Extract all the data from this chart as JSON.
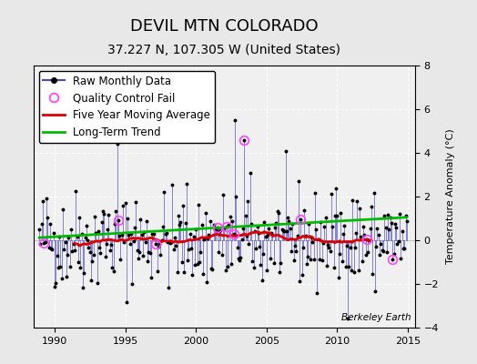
{
  "title": "DEVIL MTN COLORADO",
  "subtitle": "37.227 N, 107.305 W (United States)",
  "ylabel": "Temperature Anomaly (°C)",
  "watermark": "Berkeley Earth",
  "xlim": [
    1988.5,
    2015.5
  ],
  "ylim": [
    -4,
    8
  ],
  "yticks": [
    -4,
    -2,
    0,
    2,
    4,
    6,
    8
  ],
  "xticks": [
    1990,
    1995,
    2000,
    2005,
    2010,
    2015
  ],
  "fig_bg_color": "#e8e8e8",
  "plot_bg_color": "#f0f0f0",
  "title_fontsize": 13,
  "subtitle_fontsize": 10,
  "legend_fontsize": 8.5,
  "raw_color": "#4444cc",
  "moving_avg_color": "#dd0000",
  "trend_color": "#00bb00",
  "qc_fail_color": "#ff44ff",
  "seed": 42
}
